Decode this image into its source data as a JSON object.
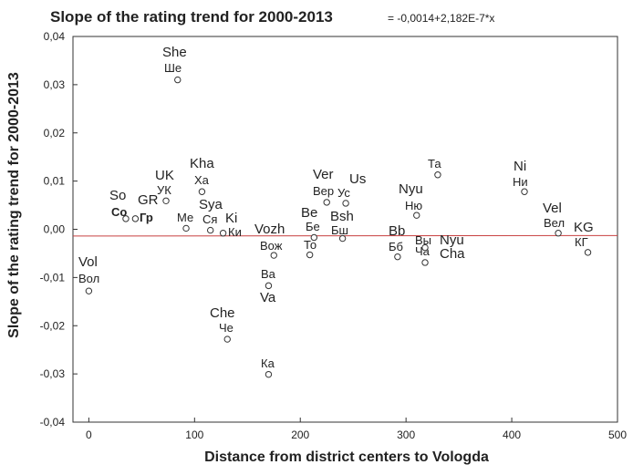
{
  "chart_data": {
    "type": "scatter",
    "title": "Slope of the rating trend for 2000-2013",
    "equation": "= -0,0014+2,182E-7*x",
    "xlabel": "Distance from district centers to Vologda",
    "ylabel": "Slope of the rating trend for 2000-2013",
    "xlim": [
      -15,
      500
    ],
    "ylim": [
      -0.04,
      0.04
    ],
    "xticks": [
      0,
      100,
      200,
      300,
      400,
      500
    ],
    "yticks": [
      -0.04,
      -0.03,
      -0.02,
      -0.01,
      0.0,
      0.01,
      0.02,
      0.03,
      0.04
    ],
    "xtick_labels": [
      "0",
      "100",
      "200",
      "300",
      "400",
      "500"
    ],
    "ytick_labels": [
      "-0,04",
      "-0,03",
      "-0,02",
      "-0,01",
      "0,00",
      "0,01",
      "0,02",
      "0,03",
      "0,04"
    ],
    "trend_line": {
      "intercept": -0.0014,
      "slope": 2.182e-07
    },
    "points": [
      {
        "x": 0,
        "y": -0.0128
      },
      {
        "x": 35,
        "y": 0.0022
      },
      {
        "x": 44,
        "y": 0.0022
      },
      {
        "x": 73,
        "y": 0.0059
      },
      {
        "x": 84,
        "y": 0.031
      },
      {
        "x": 92,
        "y": 0.0002
      },
      {
        "x": 107,
        "y": 0.0078
      },
      {
        "x": 115,
        "y": -0.0002
      },
      {
        "x": 127,
        "y": -0.0008
      },
      {
        "x": 131,
        "y": -0.0228
      },
      {
        "x": 170,
        "y": -0.0117
      },
      {
        "x": 170,
        "y": -0.0301
      },
      {
        "x": 175,
        "y": -0.0054
      },
      {
        "x": 209,
        "y": -0.0053
      },
      {
        "x": 213,
        "y": -0.0017
      },
      {
        "x": 225,
        "y": 0.0056
      },
      {
        "x": 240,
        "y": -0.0019
      },
      {
        "x": 243,
        "y": 0.0054
      },
      {
        "x": 292,
        "y": -0.0057
      },
      {
        "x": 310,
        "y": 0.0029
      },
      {
        "x": 318,
        "y": -0.0038
      },
      {
        "x": 318,
        "y": -0.0069
      },
      {
        "x": 330,
        "y": 0.0113
      },
      {
        "x": 412,
        "y": 0.0078
      },
      {
        "x": 444,
        "y": -0.0008
      },
      {
        "x": 472,
        "y": -0.0048
      }
    ],
    "annotations": [
      "She",
      "Ше",
      "Kha",
      "Ха",
      "UK",
      "УК",
      "So",
      "Со",
      "GR",
      "Гр",
      "Ме",
      "Sya",
      "Ся",
      "Ki",
      "Ки",
      "Vol",
      "Вол",
      "Che",
      "Че",
      "Vozh",
      "Вож",
      "Ва",
      "Va",
      "Ка",
      "Ver",
      "Вер",
      "Us",
      "Ус",
      "Be",
      "Бе",
      "То",
      "Bsh",
      "Бш",
      "Bb",
      "Бб",
      "Nyu",
      "Ню",
      "Та",
      "Вы",
      "Ча",
      "Nyu",
      "Cha",
      "Ni",
      "Ни",
      "Vel",
      "Вел",
      "KG",
      "КГ"
    ]
  }
}
